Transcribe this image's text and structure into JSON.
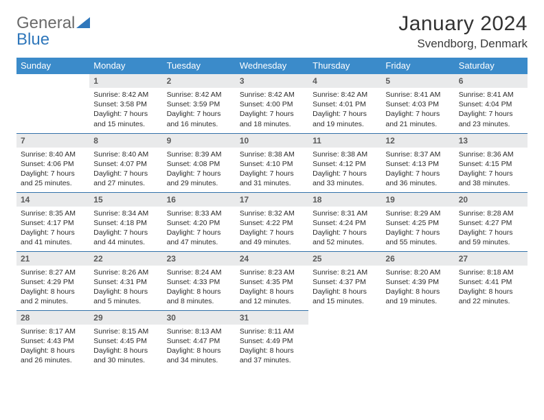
{
  "brand": {
    "name_gray": "General",
    "name_blue": "Blue"
  },
  "title": "January 2024",
  "location": "Svendborg, Denmark",
  "colors": {
    "header_bg": "#3b8bca",
    "header_text": "#ffffff",
    "row_border": "#2f6fa8",
    "daynum_bg": "#e9eaeb",
    "daynum_text": "#5a5a5a",
    "body_text": "#2a2a2a",
    "brand_gray": "#6a6a6a",
    "brand_blue": "#2f77bb"
  },
  "weekdays": [
    "Sunday",
    "Monday",
    "Tuesday",
    "Wednesday",
    "Thursday",
    "Friday",
    "Saturday"
  ],
  "weeks": [
    [
      null,
      {
        "d": "1",
        "sr": "8:42 AM",
        "ss": "3:58 PM",
        "dl": "7 hours and 15 minutes."
      },
      {
        "d": "2",
        "sr": "8:42 AM",
        "ss": "3:59 PM",
        "dl": "7 hours and 16 minutes."
      },
      {
        "d": "3",
        "sr": "8:42 AM",
        "ss": "4:00 PM",
        "dl": "7 hours and 18 minutes."
      },
      {
        "d": "4",
        "sr": "8:42 AM",
        "ss": "4:01 PM",
        "dl": "7 hours and 19 minutes."
      },
      {
        "d": "5",
        "sr": "8:41 AM",
        "ss": "4:03 PM",
        "dl": "7 hours and 21 minutes."
      },
      {
        "d": "6",
        "sr": "8:41 AM",
        "ss": "4:04 PM",
        "dl": "7 hours and 23 minutes."
      }
    ],
    [
      {
        "d": "7",
        "sr": "8:40 AM",
        "ss": "4:06 PM",
        "dl": "7 hours and 25 minutes."
      },
      {
        "d": "8",
        "sr": "8:40 AM",
        "ss": "4:07 PM",
        "dl": "7 hours and 27 minutes."
      },
      {
        "d": "9",
        "sr": "8:39 AM",
        "ss": "4:08 PM",
        "dl": "7 hours and 29 minutes."
      },
      {
        "d": "10",
        "sr": "8:38 AM",
        "ss": "4:10 PM",
        "dl": "7 hours and 31 minutes."
      },
      {
        "d": "11",
        "sr": "8:38 AM",
        "ss": "4:12 PM",
        "dl": "7 hours and 33 minutes."
      },
      {
        "d": "12",
        "sr": "8:37 AM",
        "ss": "4:13 PM",
        "dl": "7 hours and 36 minutes."
      },
      {
        "d": "13",
        "sr": "8:36 AM",
        "ss": "4:15 PM",
        "dl": "7 hours and 38 minutes."
      }
    ],
    [
      {
        "d": "14",
        "sr": "8:35 AM",
        "ss": "4:17 PM",
        "dl": "7 hours and 41 minutes."
      },
      {
        "d": "15",
        "sr": "8:34 AM",
        "ss": "4:18 PM",
        "dl": "7 hours and 44 minutes."
      },
      {
        "d": "16",
        "sr": "8:33 AM",
        "ss": "4:20 PM",
        "dl": "7 hours and 47 minutes."
      },
      {
        "d": "17",
        "sr": "8:32 AM",
        "ss": "4:22 PM",
        "dl": "7 hours and 49 minutes."
      },
      {
        "d": "18",
        "sr": "8:31 AM",
        "ss": "4:24 PM",
        "dl": "7 hours and 52 minutes."
      },
      {
        "d": "19",
        "sr": "8:29 AM",
        "ss": "4:25 PM",
        "dl": "7 hours and 55 minutes."
      },
      {
        "d": "20",
        "sr": "8:28 AM",
        "ss": "4:27 PM",
        "dl": "7 hours and 59 minutes."
      }
    ],
    [
      {
        "d": "21",
        "sr": "8:27 AM",
        "ss": "4:29 PM",
        "dl": "8 hours and 2 minutes."
      },
      {
        "d": "22",
        "sr": "8:26 AM",
        "ss": "4:31 PM",
        "dl": "8 hours and 5 minutes."
      },
      {
        "d": "23",
        "sr": "8:24 AM",
        "ss": "4:33 PM",
        "dl": "8 hours and 8 minutes."
      },
      {
        "d": "24",
        "sr": "8:23 AM",
        "ss": "4:35 PM",
        "dl": "8 hours and 12 minutes."
      },
      {
        "d": "25",
        "sr": "8:21 AM",
        "ss": "4:37 PM",
        "dl": "8 hours and 15 minutes."
      },
      {
        "d": "26",
        "sr": "8:20 AM",
        "ss": "4:39 PM",
        "dl": "8 hours and 19 minutes."
      },
      {
        "d": "27",
        "sr": "8:18 AM",
        "ss": "4:41 PM",
        "dl": "8 hours and 22 minutes."
      }
    ],
    [
      {
        "d": "28",
        "sr": "8:17 AM",
        "ss": "4:43 PM",
        "dl": "8 hours and 26 minutes."
      },
      {
        "d": "29",
        "sr": "8:15 AM",
        "ss": "4:45 PM",
        "dl": "8 hours and 30 minutes."
      },
      {
        "d": "30",
        "sr": "8:13 AM",
        "ss": "4:47 PM",
        "dl": "8 hours and 34 minutes."
      },
      {
        "d": "31",
        "sr": "8:11 AM",
        "ss": "4:49 PM",
        "dl": "8 hours and 37 minutes."
      },
      null,
      null,
      null
    ]
  ],
  "labels": {
    "sunrise": "Sunrise:",
    "sunset": "Sunset:",
    "daylight": "Daylight:"
  }
}
